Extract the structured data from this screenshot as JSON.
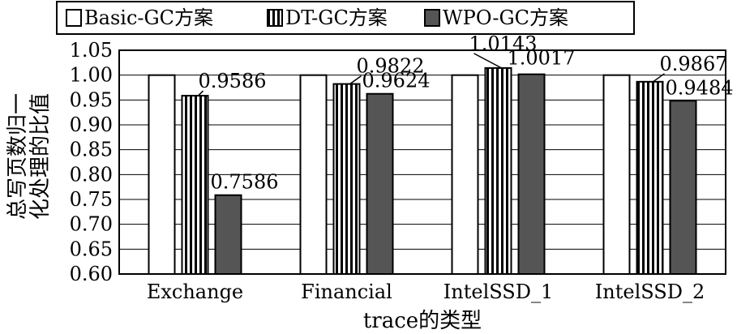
{
  "chart_data": {
    "type": "bar",
    "categories": [
      "Exchange",
      "Financial",
      "IntelSSD_1",
      "IntelSSD_2"
    ],
    "series": [
      {
        "name": "Basic-GC方案",
        "values": [
          1.0,
          1.0,
          1.0,
          1.0
        ],
        "style": "white"
      },
      {
        "name": "DT-GC方案",
        "values": [
          0.9586,
          0.9822,
          1.0143,
          0.9867
        ],
        "style": "vertical-stripes"
      },
      {
        "name": "WPO-GC方案",
        "values": [
          0.7586,
          0.9624,
          1.0017,
          0.9484
        ],
        "style": "gray"
      }
    ],
    "data_labels": [
      {
        "series": 1,
        "category": 0,
        "text": "0.9586"
      },
      {
        "series": 2,
        "category": 0,
        "text": "0.7586"
      },
      {
        "series": 1,
        "category": 1,
        "text": "0.9822"
      },
      {
        "series": 2,
        "category": 1,
        "text": "0.9624"
      },
      {
        "series": 1,
        "category": 2,
        "text": "1.0143"
      },
      {
        "series": 2,
        "category": 2,
        "text": "1.0017"
      },
      {
        "series": 1,
        "category": 3,
        "text": "0.9867"
      },
      {
        "series": 2,
        "category": 3,
        "text": "0.9484"
      }
    ],
    "yticks": [
      "0.60",
      "0.65",
      "0.70",
      "0.75",
      "0.80",
      "0.85",
      "0.90",
      "0.95",
      "1.00",
      "1.05"
    ],
    "ylim": [
      0.6,
      1.05
    ],
    "xlabel": "trace的类型",
    "ylabel_lines": [
      "总写页数归一",
      "化处理的比值"
    ],
    "grid": true,
    "legend_position": "top",
    "colors": {
      "gray": "#555555",
      "stroke": "#000000",
      "grid": "#000000"
    }
  }
}
